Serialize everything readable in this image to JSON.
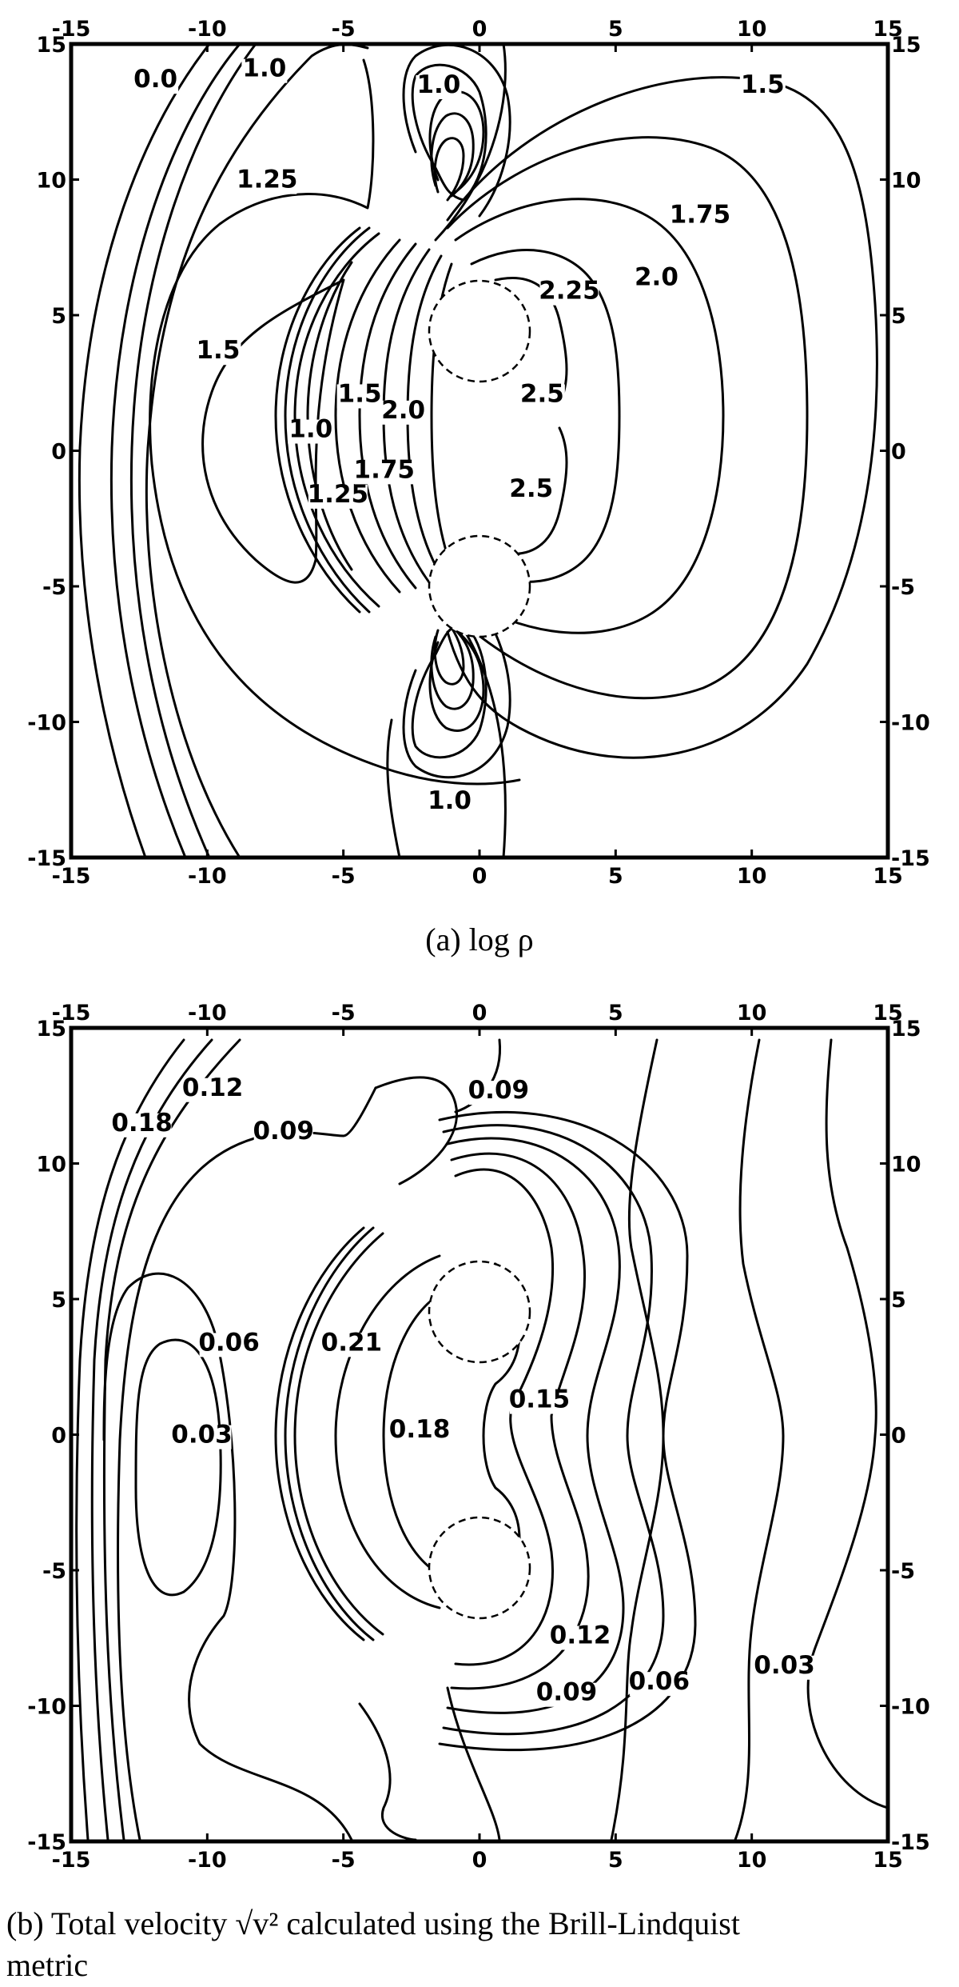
{
  "captions": {
    "a": "(a) log ρ",
    "b_line1": "(b) Total velocity √v² calculated using the Brill-Lindquist",
    "b_line2": "metric"
  },
  "chart_data": [
    {
      "type": "contour",
      "panel": "a",
      "xlim": [
        -15,
        15
      ],
      "ylim": [
        -15,
        15
      ],
      "ticks": [
        -15,
        -10,
        -5,
        0,
        5,
        10,
        15
      ],
      "tick_labels": [
        "-15",
        "-10",
        "-5",
        "0",
        "5",
        "10",
        "15"
      ],
      "contour_labels": [
        {
          "text": "0.0",
          "x": -11.9,
          "y": 13.4
        },
        {
          "text": "1.0",
          "x": -7.9,
          "y": 13.8
        },
        {
          "text": "1.0",
          "x": -1.5,
          "y": 13.2
        },
        {
          "text": "1.5",
          "x": 10.4,
          "y": 13.2
        },
        {
          "text": "1.25",
          "x": -7.8,
          "y": 9.7
        },
        {
          "text": "1.75",
          "x": 8.1,
          "y": 8.4
        },
        {
          "text": "2.0",
          "x": 6.5,
          "y": 6.1
        },
        {
          "text": "2.25",
          "x": 3.3,
          "y": 5.6
        },
        {
          "text": "1.5",
          "x": -9.6,
          "y": 3.4
        },
        {
          "text": "2.5",
          "x": 2.3,
          "y": 1.8
        },
        {
          "text": "1.0",
          "x": -6.2,
          "y": 0.5
        },
        {
          "text": "1.25",
          "x": -5.2,
          "y": -1.9
        },
        {
          "text": "1.5",
          "x": -4.4,
          "y": 1.8
        },
        {
          "text": "1.75",
          "x": -3.5,
          "y": -1.0
        },
        {
          "text": "2.0",
          "x": -2.8,
          "y": 1.2
        },
        {
          "text": "2.5",
          "x": 1.9,
          "y": -1.7
        },
        {
          "text": "1.0",
          "x": -1.1,
          "y": -13.2
        }
      ],
      "dashed_circles": [
        {
          "cx": 0,
          "cy": 5,
          "r": 1.9
        },
        {
          "cx": 0,
          "cy": -5,
          "r": 1.9
        }
      ]
    },
    {
      "type": "contour",
      "panel": "b",
      "xlim": [
        -15,
        15
      ],
      "ylim": [
        -15,
        15
      ],
      "ticks": [
        -15,
        -10,
        -5,
        0,
        5,
        10,
        15
      ],
      "tick_labels": [
        "-15",
        "-10",
        "-5",
        "0",
        "5",
        "10",
        "15"
      ],
      "contour_labels": [
        {
          "text": "0.18",
          "x": -12.4,
          "y": 11.2
        },
        {
          "text": "0.12",
          "x": -9.8,
          "y": 12.5
        },
        {
          "text": "0.09",
          "x": -7.2,
          "y": 10.9
        },
        {
          "text": "0.09",
          "x": 0.7,
          "y": 12.4
        },
        {
          "text": "0.06",
          "x": -9.2,
          "y": 3.1
        },
        {
          "text": "0.21",
          "x": -4.7,
          "y": 3.1
        },
        {
          "text": "0.15",
          "x": 2.2,
          "y": 1.0
        },
        {
          "text": "0.03",
          "x": -10.2,
          "y": -0.3
        },
        {
          "text": "0.18",
          "x": -2.2,
          "y": -0.1
        },
        {
          "text": "0.12",
          "x": 3.7,
          "y": -7.7
        },
        {
          "text": "0.09",
          "x": 3.2,
          "y": -9.8
        },
        {
          "text": "0.06",
          "x": 6.6,
          "y": -9.4
        },
        {
          "text": "0.03",
          "x": 11.2,
          "y": -8.8
        }
      ],
      "dashed_circles": [
        {
          "cx": 0,
          "cy": 5,
          "r": 1.9
        },
        {
          "cx": 0,
          "cy": -5,
          "r": 1.9
        }
      ]
    }
  ]
}
